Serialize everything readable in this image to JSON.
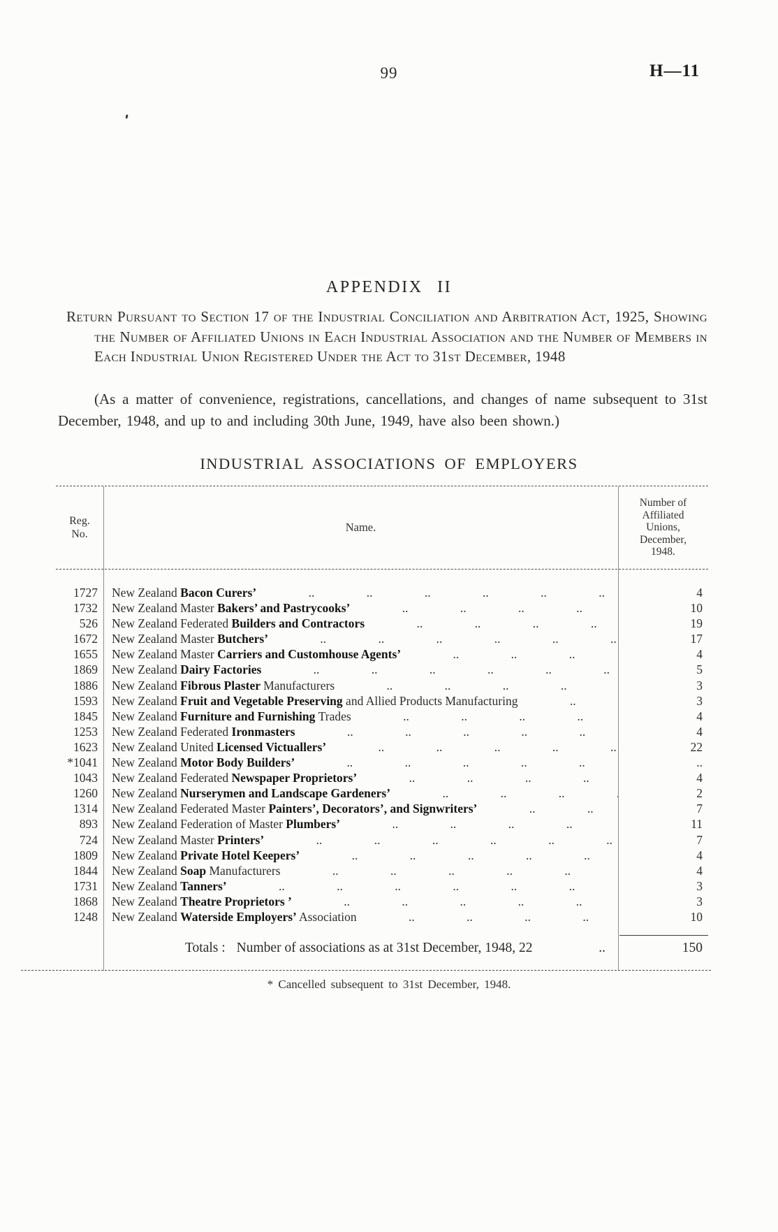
{
  "page": {
    "number": "99",
    "doc_ref": "H—11"
  },
  "heading": {
    "appendix": "APPENDIX II",
    "return_clause": "Return Pursuant to Section 17 of the Industrial Conciliation and Arbitration Act, 1925, Showing the Number of Affiliated Unions in Each Industrial Association and the Number of Members in Each Industrial Union Registered Under the Act to 31st December, 1948",
    "convenience_note": "(As a matter of convenience, registrations, cancellations, and changes of name subsequent to 31st December, 1948, and up to and including 30th June, 1949, have also been shown.)",
    "table_title": "INDUSTRIAL ASSOCIATIONS OF EMPLOYERS"
  },
  "table": {
    "headers": {
      "reg_no": "Reg.\nNo.",
      "name": "Name.",
      "affiliated": "Number of\nAffiliated\nUnions,\nDecember,\n1948."
    },
    "rows": [
      {
        "reg": "1727",
        "pre": "New Zealand ",
        "key": "Bacon Curers’",
        "post": "",
        "value": "4"
      },
      {
        "reg": "1732",
        "pre": "New Zealand Master ",
        "key": "Bakers’ and Pastrycooks’",
        "post": "",
        "value": "10"
      },
      {
        "reg": "526",
        "pre": "New Zealand Federated ",
        "key": "Builders and Contractors",
        "post": "",
        "value": "19"
      },
      {
        "reg": "1672",
        "pre": "New Zealand Master ",
        "key": "Butchers’",
        "post": "",
        "value": "17"
      },
      {
        "reg": "1655",
        "pre": "New Zealand Master ",
        "key": "Carriers and Customhouse Agents’",
        "post": "",
        "value": "4"
      },
      {
        "reg": "1869",
        "pre": "New Zealand ",
        "key": "Dairy Factories",
        "post": "",
        "value": "5"
      },
      {
        "reg": "1886",
        "pre": "New Zealand ",
        "key": "Fibrous Plaster ",
        "post": "Manufacturers",
        "value": "3"
      },
      {
        "reg": "1593",
        "pre": "New Zealand ",
        "key": "Fruit and Vegetable Preserving",
        "post": " and Allied Products Manufacturing",
        "value": "3"
      },
      {
        "reg": "1845",
        "pre": "New Zealand ",
        "key": "Furniture and Furnishing ",
        "post": "Trades",
        "value": "4"
      },
      {
        "reg": "1253",
        "pre": "New Zealand Federated ",
        "key": "Ironmasters",
        "post": "",
        "value": "4"
      },
      {
        "reg": "1623",
        "pre": "New Zealand United ",
        "key": "Licensed Victuallers’",
        "post": "",
        "value": "22"
      },
      {
        "reg": "*1041",
        "pre": "New Zealand ",
        "key": "Motor Body Builders’",
        "post": "",
        "value": ".."
      },
      {
        "reg": "1043",
        "pre": "New Zealand Federated ",
        "key": "Newspaper Proprietors’",
        "post": "",
        "value": "4"
      },
      {
        "reg": "1260",
        "pre": "New Zealand ",
        "key": "Nurserymen and Landscape Gardeners’",
        "post": "",
        "value": "2"
      },
      {
        "reg": "1314",
        "pre": "New Zealand Federated Master ",
        "key": "Painters’, Decorators’, and Signwriters’",
        "post": "",
        "value": "7"
      },
      {
        "reg": "893",
        "pre": "New Zealand Federation of Master ",
        "key": "Plumbers’",
        "post": "",
        "value": "11"
      },
      {
        "reg": "724",
        "pre": "New Zealand Master ",
        "key": "Printers’",
        "post": "",
        "value": "7"
      },
      {
        "reg": "1809",
        "pre": "New Zealand ",
        "key": "Private Hotel Keepers’",
        "post": "",
        "value": "4"
      },
      {
        "reg": "1844",
        "pre": "New Zealand ",
        "key": "Soap ",
        "post": "Manufacturers",
        "value": "4"
      },
      {
        "reg": "1731",
        "pre": "New Zealand ",
        "key": "Tanners’",
        "post": "",
        "value": "3"
      },
      {
        "reg": "1868",
        "pre": "New Zealand ",
        "key": "Theatre Proprietors ’",
        "post": "",
        "value": "3"
      },
      {
        "reg": "1248",
        "pre": "New Zealand ",
        "key": "Waterside Employers’ ",
        "post": "Association",
        "value": "10"
      }
    ],
    "totals": {
      "label": "Totals :",
      "text": "Number of associations as at 31st December, 1948, 22",
      "dots": "..",
      "value": "150"
    }
  },
  "footnote": "* Cancelled subsequent to 31st December, 1948."
}
